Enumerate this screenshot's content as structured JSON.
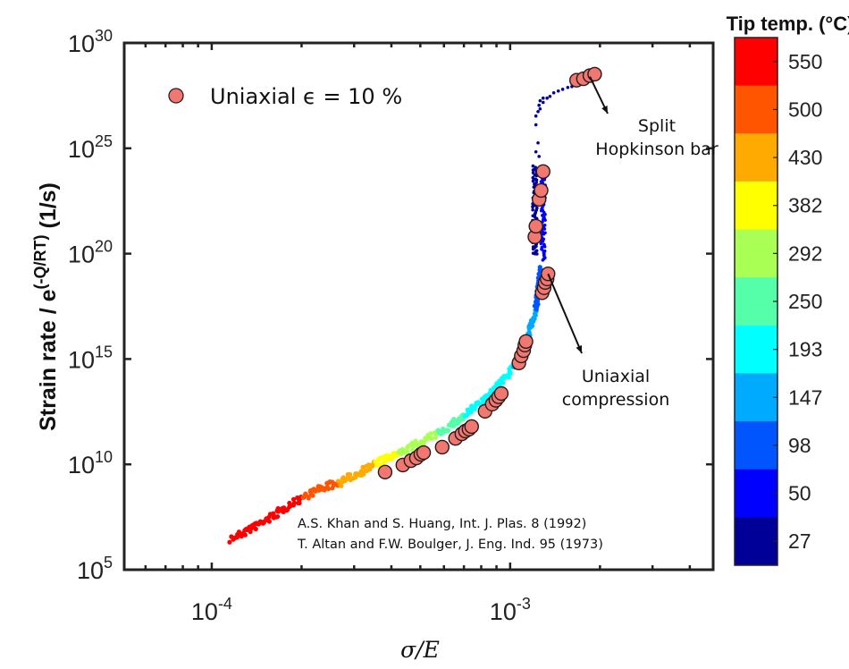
{
  "chart_data": {
    "type": "scatter",
    "xlabel": "σ/E",
    "ylabel": "Strain rate / e^(-Q/RT) (1/s)",
    "ylabel_parts": {
      "main": "Strain rate / e",
      "sup": "(-Q/RT)",
      "unit": " (1/s)"
    },
    "xscale": "log",
    "yscale": "log",
    "xlim": [
      5.09e-05,
      0.00479
    ],
    "ylim": [
      100000.0,
      1e+30
    ],
    "grid": false,
    "x_ticks": [
      {
        "base": "10",
        "exp": "-4",
        "value": 0.0001
      },
      {
        "base": "10",
        "exp": "-3",
        "value": 0.001
      }
    ],
    "y_ticks": [
      {
        "base": "10",
        "exp": "5",
        "value": 100000.0
      },
      {
        "base": "10",
        "exp": "10",
        "value": 10000000000.0
      },
      {
        "base": "10",
        "exp": "15",
        "value": 1000000000000000.0
      },
      {
        "base": "10",
        "exp": "20",
        "value": 1e+20
      },
      {
        "base": "10",
        "exp": "25",
        "value": 1e+25
      },
      {
        "base": "10",
        "exp": "30",
        "value": 1e+30
      }
    ],
    "legend": {
      "placement": "top-left",
      "entries": [
        {
          "label": "Uniaxial ϵ = 10 %",
          "marker": "circle",
          "color": "#f07870"
        }
      ]
    },
    "series": [
      {
        "name": "Uniaxial ϵ = 10 %",
        "marker_color": "#f07870",
        "points": [
          {
            "x": 0.000381,
            "y": 4300000000.0
          },
          {
            "x": 0.000437,
            "y": 9300000000.0
          },
          {
            "x": 0.000465,
            "y": 15000000000.0
          },
          {
            "x": 0.000485,
            "y": 20000000000.0
          },
          {
            "x": 0.000502,
            "y": 30000000000.0
          },
          {
            "x": 0.000513,
            "y": 36000000000.0
          },
          {
            "x": 0.000592,
            "y": 66000000000.0
          },
          {
            "x": 0.000656,
            "y": 170000000000.0
          },
          {
            "x": 0.000689,
            "y": 280000000000.0
          },
          {
            "x": 0.000708,
            "y": 380000000000.0
          },
          {
            "x": 0.000728,
            "y": 470000000000.0
          },
          {
            "x": 0.000743,
            "y": 620000000000.0
          },
          {
            "x": 0.000824,
            "y": 3300000000000.0
          },
          {
            "x": 0.000871,
            "y": 7200000000000.0
          },
          {
            "x": 0.000896,
            "y": 11000000000000.0
          },
          {
            "x": 0.000915,
            "y": 16000000000000.0
          },
          {
            "x": 0.000934,
            "y": 23000000000000.0
          },
          {
            "x": 0.00107,
            "y": 650000000000000.0
          },
          {
            "x": 0.00109,
            "y": 1400000000000000.0
          },
          {
            "x": 0.00111,
            "y": 2500000000000000.0
          },
          {
            "x": 0.00112,
            "y": 4600000000000000.0
          },
          {
            "x": 0.00113,
            "y": 6800000000000000.0
          },
          {
            "x": 0.00128,
            "y": 1.4e+18
          },
          {
            "x": 0.0013,
            "y": 2.4e+18
          },
          {
            "x": 0.00131,
            "y": 4.3e+18
          },
          {
            "x": 0.00133,
            "y": 6.3e+18
          },
          {
            "x": 0.00134,
            "y": 1.1e+19
          },
          {
            "x": 0.00121,
            "y": 6.3e+20
          },
          {
            "x": 0.00122,
            "y": 2e+21
          },
          {
            "x": 0.00125,
            "y": 3.8e+22
          },
          {
            "x": 0.00127,
            "y": 1e+23
          },
          {
            "x": 0.00129,
            "y": 7.9e+23
          },
          {
            "x": 0.00167,
            "y": 1.7e+28
          },
          {
            "x": 0.00176,
            "y": 2e+28
          },
          {
            "x": 0.00185,
            "y": 2.8e+28
          },
          {
            "x": 0.00192,
            "y": 3.3e+28
          }
        ]
      }
    ],
    "temperature_traces": [
      {
        "points": [
          [
            0.000116,
            2800000.0,
            550
          ],
          [
            0.000155,
            26000000.0,
            550
          ],
          [
            0.000203,
            300000000.0,
            500
          ],
          [
            0.000235,
            800000000.0,
            500
          ],
          [
            0.000268,
            1300000000.0,
            430
          ],
          [
            0.0003,
            3000000000.0,
            430
          ],
          [
            0.000353,
            11000000000.0,
            382
          ],
          [
            0.00042,
            30000000000.0,
            292
          ],
          [
            0.000466,
            66000000000.0,
            292
          ],
          [
            0.000572,
            280000000000.0,
            250
          ],
          [
            0.000703,
            2000000000000.0,
            193
          ],
          [
            0.000865,
            23000000000000.0,
            193
          ],
          [
            0.00103,
            440000000000000.0,
            147
          ],
          [
            0.00114,
            8100000000000000.0,
            147
          ],
          [
            0.00122,
            2.5e+17,
            98
          ],
          [
            0.00127,
            2e+19,
            98
          ]
        ]
      },
      {
        "points": [
          [
            0.00121,
            9e+19,
            27
          ],
          [
            0.00121,
            1.5e+24,
            27
          ]
        ]
      },
      {
        "points": [
          [
            0.00129,
            5.4e+19,
            50
          ],
          [
            0.00129,
            9.5e+23,
            50
          ]
        ]
      }
    ],
    "sparse_points": {
      "temperature": 27,
      "points": [
        [
          0.00122,
          6.8e+24
        ],
        [
          0.00124,
          1.8e+25
        ],
        [
          0.00125,
          4.1e+24
        ],
        [
          0.00122,
          1.3e+26
        ],
        [
          0.00122,
          3.4e+26
        ],
        [
          0.00124,
          5.5e+26
        ],
        [
          0.00126,
          7.4e+26
        ],
        [
          0.00125,
          1.1e+27
        ],
        [
          0.00129,
          1.5e+27
        ],
        [
          0.00126,
          1.8e+27
        ],
        [
          0.00133,
          2.4e+27
        ],
        [
          0.00136,
          2.9e+27
        ],
        [
          0.0014,
          4.3e+27
        ],
        [
          0.00145,
          5.2e+27
        ],
        [
          0.0015,
          6.3e+27
        ],
        [
          0.00156,
          7.7e+27
        ],
        [
          0.00161,
          8.5e+27
        ],
        [
          0.00167,
          1e+28
        ],
        [
          0.00173,
          1.4e+28
        ],
        [
          0.00129,
          2.4e+27
        ]
      ]
    },
    "annotations": {
      "hopkinson": {
        "lines": [
          "Split",
          "Hopkinson bar"
        ],
        "arrow_to": {
          "x": 0.00185,
          "y": 2.5e+28
        }
      },
      "compression": {
        "lines": [
          "Uniaxial",
          "compression"
        ],
        "arrow_to": {
          "x": 0.00134,
          "y": 1.1e+19
        }
      },
      "citations": [
        "A.S. Khan and S. Huang, Int. J. Plas. 8 (1992)",
        "T. Altan and F.W. Boulger, J. Eng. Ind. 95 (1973)"
      ]
    },
    "colorbar": {
      "title": "Tip temp. (°C)",
      "levels": [
        {
          "label": "550",
          "value": 550,
          "color": "#ff0000"
        },
        {
          "label": "500",
          "value": 500,
          "color": "#ff5500"
        },
        {
          "label": "430",
          "value": 430,
          "color": "#ffaa00"
        },
        {
          "label": "382",
          "value": 382,
          "color": "#ffff00"
        },
        {
          "label": "292",
          "value": 292,
          "color": "#aaff55"
        },
        {
          "label": "250",
          "value": 250,
          "color": "#55ffaa"
        },
        {
          "label": "193",
          "value": 193,
          "color": "#00ffff"
        },
        {
          "label": "147",
          "value": 147,
          "color": "#00aaff"
        },
        {
          "label": "98",
          "value": 98,
          "color": "#0055ff"
        },
        {
          "label": "50",
          "value": 50,
          "color": "#0000ff"
        },
        {
          "label": "27",
          "value": 27,
          "color": "#000099"
        }
      ]
    }
  }
}
